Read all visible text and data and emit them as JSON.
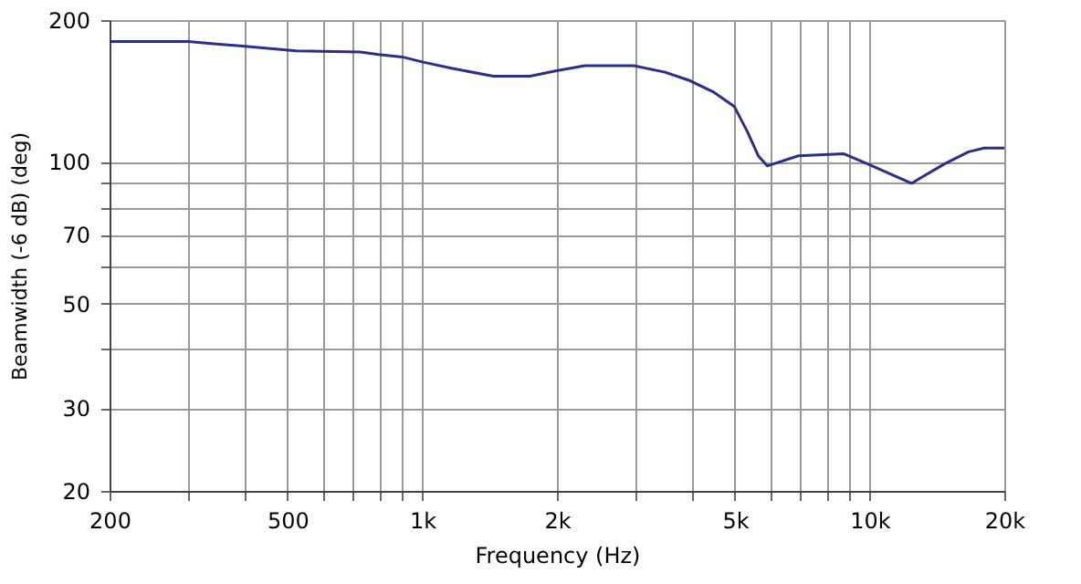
{
  "chart_data": {
    "type": "line",
    "xlabel": "Frequency  (Hz)",
    "ylabel": "Beamwidth (-6 dB)  (deg)",
    "x": [
      200,
      300,
      342,
      402,
      523,
      727,
      798,
      902,
      1000,
      1162,
      1442,
      1741,
      1985,
      2307,
      2971,
      3489,
      3945,
      4457,
      4985,
      5328,
      5637,
      5904,
      6930,
      8764,
      9895,
      12400,
      14700,
      16640,
      18040,
      20000
    ],
    "series": [
      {
        "color": "#2b2f8a",
        "values": [
          180,
          180,
          178,
          176,
          172,
          171,
          169,
          167,
          163,
          158,
          152,
          152,
          156,
          160,
          160,
          155,
          149,
          141,
          131,
          116,
          103,
          98,
          103,
          104,
          99,
          90,
          99,
          105,
          107,
          107
        ]
      }
    ],
    "log": "xy",
    "xlim": [
      200,
      20000
    ],
    "ylim": [
      20,
      200
    ],
    "xticks": [
      {
        "value": 200,
        "label": "200"
      },
      {
        "value": 300,
        "label": null
      },
      {
        "value": 400,
        "label": null
      },
      {
        "value": 500,
        "label": "500"
      },
      {
        "value": 600,
        "label": null
      },
      {
        "value": 700,
        "label": null
      },
      {
        "value": 800,
        "label": null
      },
      {
        "value": 900,
        "label": null
      },
      {
        "value": 1000,
        "label": "1k"
      },
      {
        "value": 2000,
        "label": "2k"
      },
      {
        "value": 3000,
        "label": null
      },
      {
        "value": 4000,
        "label": null
      },
      {
        "value": 5000,
        "label": "5k"
      },
      {
        "value": 6000,
        "label": null
      },
      {
        "value": 7000,
        "label": null
      },
      {
        "value": 8000,
        "label": null
      },
      {
        "value": 9000,
        "label": null
      },
      {
        "value": 10000,
        "label": "10k"
      },
      {
        "value": 20000,
        "label": "20k"
      }
    ],
    "yticks": [
      20,
      30,
      {
        "value": 40,
        "label": null
      },
      50,
      {
        "value": 60,
        "label": null
      },
      70,
      {
        "value": 80,
        "label": null
      },
      {
        "value": 90,
        "label": null
      },
      100,
      200
    ],
    "grid": true,
    "marker": "none",
    "line_style": "solid"
  }
}
